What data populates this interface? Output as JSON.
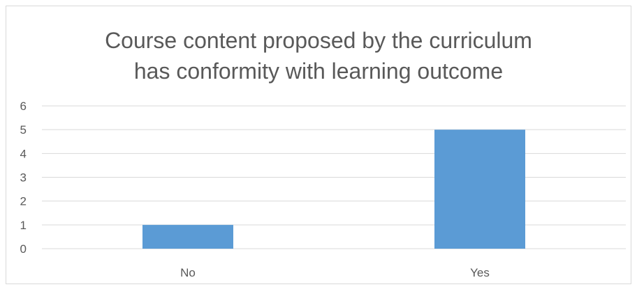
{
  "chart_data": {
    "type": "bar",
    "title_lines": [
      "Course content proposed by the curriculum",
      "has conformity with learning outcome"
    ],
    "categories": [
      "No",
      "Yes"
    ],
    "values": [
      1,
      5
    ],
    "ylim": [
      0,
      6
    ],
    "yticks": [
      "0",
      "1",
      "2",
      "3",
      "4",
      "5",
      "6"
    ],
    "grid": true,
    "legend": "none",
    "colors": {
      "bar": "#5b9bd5",
      "gridline": "#d9d9d9",
      "text": "#595959"
    }
  }
}
